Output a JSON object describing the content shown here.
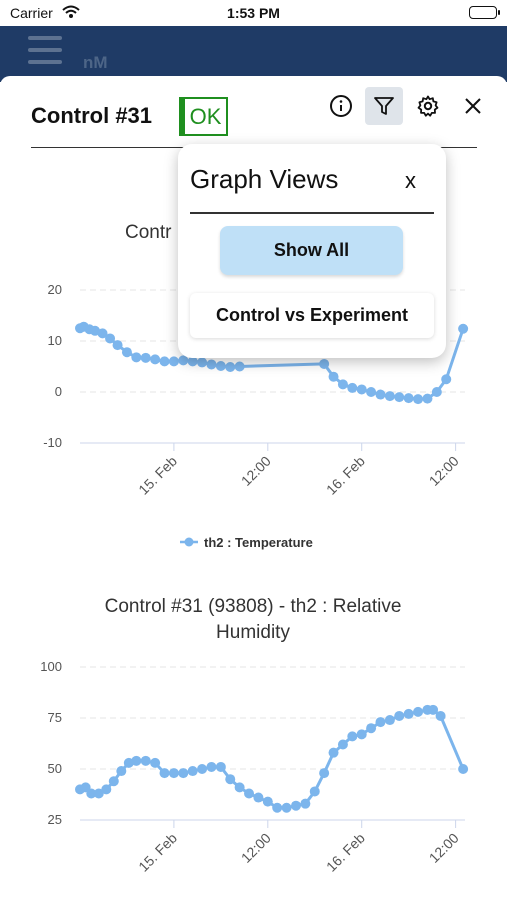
{
  "status_bar": {
    "carrier": "Carrier",
    "time": "1:53 PM"
  },
  "header": {
    "title": "nM"
  },
  "card": {
    "title": "Control #31",
    "status": "OK"
  },
  "icons": {
    "menu": "hamburger-icon",
    "info": "info-icon",
    "filter": "filter-icon",
    "settings": "gear-icon",
    "close": "close-icon"
  },
  "colors": {
    "header_bg": "#1f3b66",
    "series": "#7cb5ec",
    "status_ok": "#1f8f1f",
    "show_all_bg": "#bfe0f7"
  },
  "popup": {
    "title": "Graph Views",
    "close_label": "x",
    "show_all_label": "Show All",
    "control_vs_experiment_label": "Control vs Experiment"
  },
  "chart_data": [
    {
      "type": "line",
      "title": "Contr",
      "x_tick_labels": [
        "15. Feb",
        "12:00",
        "16. Feb",
        "12:00"
      ],
      "x_ticks": [
        0.5,
        1.0,
        1.5,
        2.0
      ],
      "yticks": [
        20,
        10,
        0,
        -10
      ],
      "ylim": [
        -10,
        20
      ],
      "xlim": [
        0.0,
        2.05
      ],
      "grid": true,
      "legend": {
        "position": "bottom",
        "label": "th2 : Temperature"
      },
      "series": [
        {
          "name": "th2 : Temperature",
          "x": [
            0.0,
            0.02,
            0.05,
            0.08,
            0.12,
            0.16,
            0.2,
            0.25,
            0.3,
            0.35,
            0.4,
            0.45,
            0.5,
            0.55,
            0.6,
            0.65,
            0.7,
            0.75,
            0.8,
            0.85,
            1.3,
            1.35,
            1.4,
            1.45,
            1.5,
            1.55,
            1.6,
            1.65,
            1.7,
            1.75,
            1.8,
            1.85,
            1.9,
            1.95,
            2.04
          ],
          "y": [
            12.5,
            12.8,
            12.3,
            12.0,
            11.5,
            10.5,
            9.2,
            7.8,
            6.8,
            6.7,
            6.4,
            6.0,
            6.0,
            6.2,
            6.0,
            5.8,
            5.4,
            5.1,
            4.9,
            5.0,
            5.5,
            3.0,
            1.5,
            0.8,
            0.5,
            0.0,
            -0.5,
            -0.8,
            -1.0,
            -1.2,
            -1.4,
            -1.3,
            0.0,
            2.5,
            12.4
          ]
        }
      ]
    },
    {
      "type": "line",
      "title": "Control #31 (93808) - th2 : Relative Humidity",
      "x_tick_labels": [
        "15. Feb",
        "12:00",
        "16. Feb",
        "12:00"
      ],
      "x_ticks": [
        0.5,
        1.0,
        1.5,
        2.0
      ],
      "yticks": [
        100,
        75,
        50,
        25
      ],
      "ylim": [
        25,
        100
      ],
      "xlim": [
        0.0,
        2.05
      ],
      "grid": true,
      "series": [
        {
          "name": "th2 : Relative Humidity",
          "x": [
            0.0,
            0.03,
            0.06,
            0.1,
            0.14,
            0.18,
            0.22,
            0.26,
            0.3,
            0.35,
            0.4,
            0.45,
            0.5,
            0.55,
            0.6,
            0.65,
            0.7,
            0.75,
            0.8,
            0.85,
            0.9,
            0.95,
            1.0,
            1.05,
            1.1,
            1.15,
            1.2,
            1.25,
            1.3,
            1.35,
            1.4,
            1.45,
            1.5,
            1.55,
            1.6,
            1.65,
            1.7,
            1.75,
            1.8,
            1.85,
            1.88,
            1.92,
            2.04
          ],
          "y": [
            40,
            41,
            38,
            38,
            40,
            44,
            49,
            53,
            54,
            54,
            53,
            48,
            48,
            48,
            49,
            50,
            51,
            51,
            45,
            41,
            38,
            36,
            34,
            31,
            31,
            32,
            33,
            39,
            48,
            58,
            62,
            66,
            67,
            70,
            73,
            74,
            76,
            77,
            78,
            79,
            79,
            76,
            50
          ]
        }
      ]
    }
  ]
}
